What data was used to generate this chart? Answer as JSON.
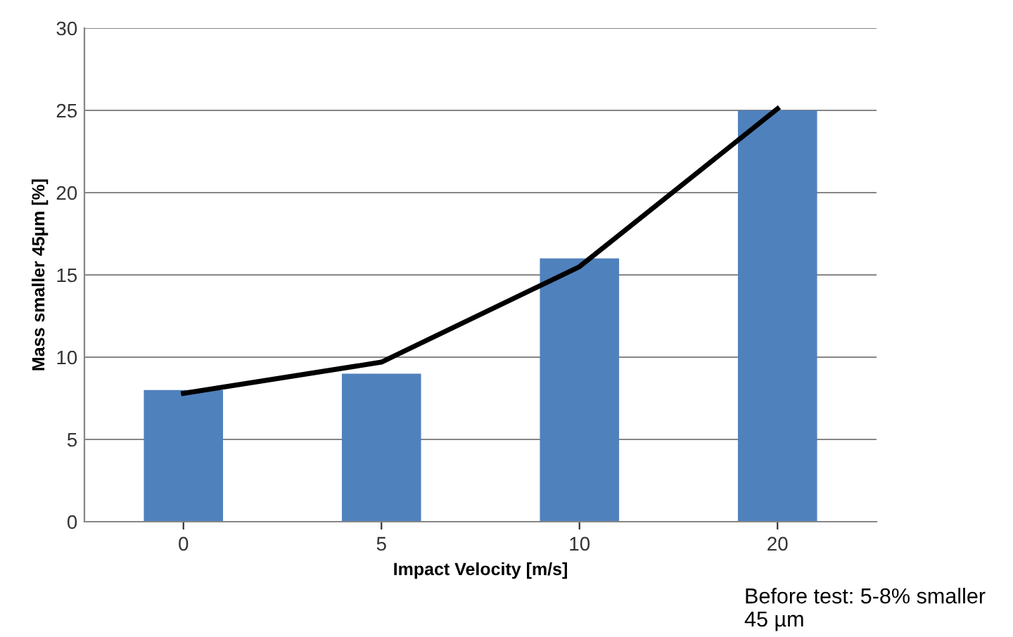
{
  "chart_data": {
    "type": "bar",
    "xlabel": "Impact Velocity [m/s]",
    "ylabel": "Mass smaller 45µm [%]",
    "categories": [
      "0",
      "5",
      "10",
      "20"
    ],
    "series": [
      {
        "color": "#4f81bd",
        "values": [
          8,
          9,
          16,
          25
        ]
      },
      {
        "type": "line",
        "color": "#000000",
        "x": [
          "0",
          "5",
          "10",
          "20"
        ],
        "values": [
          7.8,
          9.7,
          15.5,
          25.1
        ]
      }
    ],
    "ylim": [
      0,
      30
    ],
    "yticks": [
      0,
      5,
      10,
      15,
      20,
      25,
      30
    ],
    "grid": "y",
    "legend": false,
    "annotations": [
      "Before test: 5-8% smaller\n45 µm"
    ]
  }
}
